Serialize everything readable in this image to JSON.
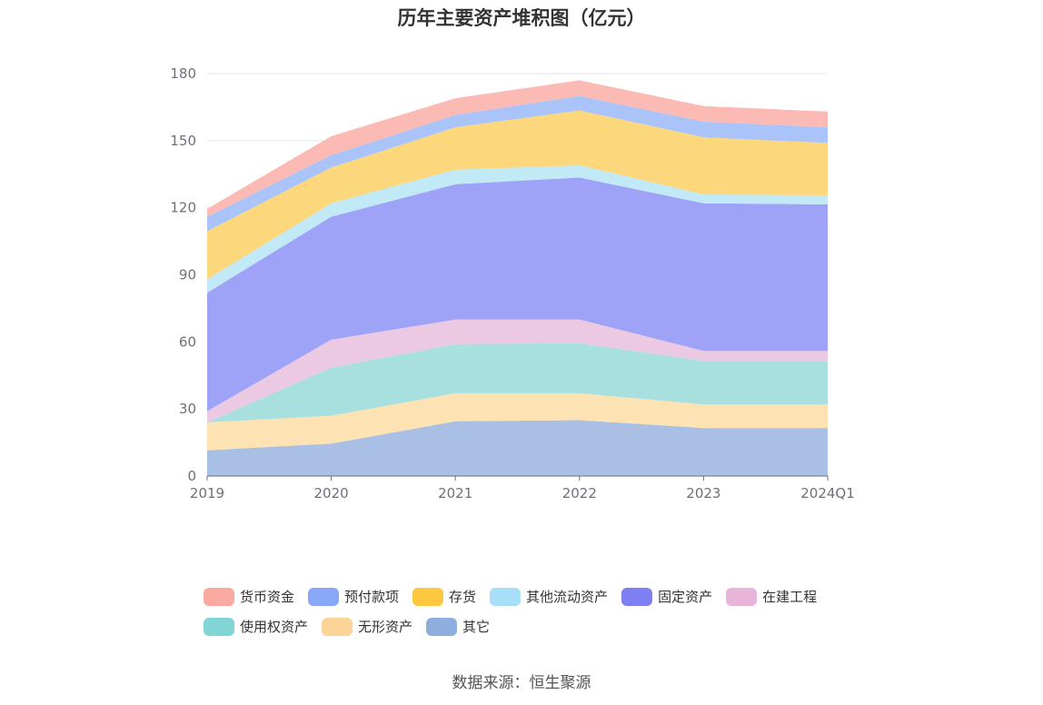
{
  "chart_data": {
    "type": "area",
    "stacked": true,
    "title": "历年主要资产堆积图（亿元）",
    "x": [
      "2019",
      "2020",
      "2021",
      "2022",
      "2023",
      "2024Q1"
    ],
    "y_ticks": [
      "0",
      "30",
      "60",
      "90",
      "120",
      "150",
      "180"
    ],
    "ylim": [
      0,
      180
    ],
    "grid": true,
    "legend_position": "bottom",
    "series": [
      {
        "name": "其它",
        "color": "#a9bfe3",
        "values": [
          11.5,
          14.5,
          24.5,
          25,
          21.5,
          21.5
        ]
      },
      {
        "name": "无形资产",
        "color": "#fde2b3",
        "values": [
          12.5,
          12.5,
          12.5,
          12,
          10.5,
          10.5
        ]
      },
      {
        "name": "使用权资产",
        "color": "#a8e0df",
        "values": [
          0,
          21.5,
          22,
          22.5,
          19.5,
          19.5
        ]
      },
      {
        "name": "在建工程",
        "color": "#ecc9e2",
        "values": [
          5,
          12.5,
          11,
          10.5,
          4.5,
          4.5
        ]
      },
      {
        "name": "固定资产",
        "color": "#9fa3f7",
        "values": [
          53,
          55,
          60.5,
          63.5,
          66,
          65.5
        ]
      },
      {
        "name": "其他流动资产",
        "color": "#c1e9f6",
        "values": [
          6,
          6,
          6.5,
          5.5,
          4,
          4
        ]
      },
      {
        "name": "存货",
        "color": "#fdd77c",
        "values": [
          21.5,
          16,
          19,
          24.5,
          25.5,
          23.5
        ]
      },
      {
        "name": "预付款项",
        "color": "#aac4fa",
        "values": [
          6.5,
          5.5,
          5.5,
          6.5,
          7,
          7
        ]
      },
      {
        "name": "货币资金",
        "color": "#fbbab4",
        "values": [
          3.5,
          8.5,
          7.5,
          7,
          7,
          7
        ]
      }
    ]
  },
  "legend": [
    {
      "label": "货币资金",
      "color": "#f9a99f"
    },
    {
      "label": "预付款项",
      "color": "#8aa8f8"
    },
    {
      "label": "存货",
      "color": "#fdc83f"
    },
    {
      "label": "其他流动资产",
      "color": "#a6dff7"
    },
    {
      "label": "固定资产",
      "color": "#7d7ff2"
    },
    {
      "label": "在建工程",
      "color": "#e8b4da"
    },
    {
      "label": "使用权资产",
      "color": "#82d5d5"
    },
    {
      "label": "无形资产",
      "color": "#fdd497"
    },
    {
      "label": "其它",
      "color": "#8eaedd"
    }
  ],
  "source": "数据来源：恒生聚源"
}
